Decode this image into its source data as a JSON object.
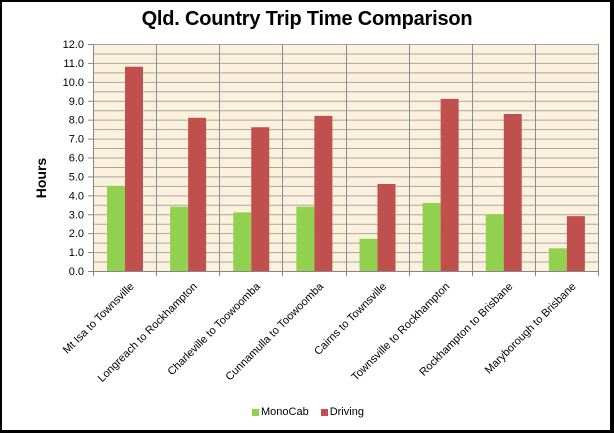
{
  "chart_data": {
    "type": "bar",
    "title": "Qld. Country Trip Time Comparison",
    "xlabel": "",
    "ylabel": "Hours",
    "ylim": [
      0,
      12
    ],
    "yticks": [
      "0.0",
      "1.0",
      "2.0",
      "3.0",
      "4.0",
      "5.0",
      "6.0",
      "7.0",
      "8.0",
      "9.0",
      "10.0",
      "11.0",
      "12.0"
    ],
    "grid": {
      "major_step": 1.0,
      "minor_step": 0.5,
      "vertical_category_lines": true
    },
    "legend_position": "bottom",
    "categories": [
      "Mt Isa to Townsville",
      "Longreach to Rockhampton",
      "Charleville to Toowoomba",
      "Cunnamulla to Toowoomba",
      "Cairns to Townsville",
      "Townsville to Rockhampton",
      "Rockhampton to Brisbane",
      "Maryborough to Brisbane"
    ],
    "series": [
      {
        "name": "MonoCab",
        "color": "#92D050",
        "values": [
          4.5,
          3.4,
          3.1,
          3.4,
          1.7,
          3.6,
          3.0,
          1.2
        ]
      },
      {
        "name": "Driving",
        "color": "#C0504D",
        "values": [
          10.8,
          8.1,
          7.6,
          8.2,
          4.6,
          9.1,
          8.3,
          2.9
        ]
      }
    ]
  },
  "style": {
    "plot_background": "#FCF1DC",
    "gridline_color": "#A6A6A6",
    "axis_color": "#868686"
  }
}
